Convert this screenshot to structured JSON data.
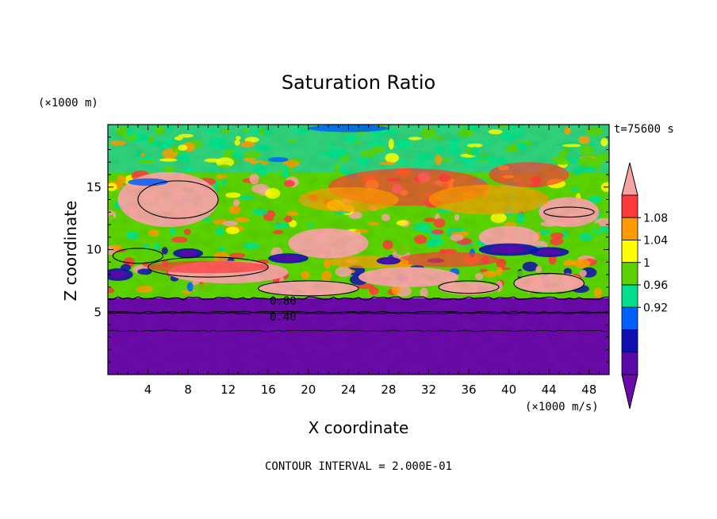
{
  "chart_data": {
    "type": "heatmap",
    "title": "Saturation Ratio",
    "xlabel": "X coordinate",
    "ylabel": "Z coordinate",
    "x_unit": "(×1000 m/s)",
    "y_unit": "(×1000 m)",
    "time_label": "t=75600 s",
    "footer": "CONTOUR INTERVAL = 2.000E-01",
    "xlim": [
      0,
      50
    ],
    "ylim": [
      0,
      20
    ],
    "x_ticks": [
      "4",
      "8",
      "12",
      "16",
      "20",
      "24",
      "28",
      "32",
      "36",
      "40",
      "44",
      "48"
    ],
    "y_ticks": [
      "5",
      "10",
      "15"
    ],
    "contour_labels": [
      "0.80",
      "0.40"
    ],
    "colorbar": {
      "labels": [
        "1.08",
        "1.04",
        "1",
        "0.96",
        "0.92"
      ],
      "colors": [
        "#ff3a3a",
        "#ff9a00",
        "#ffff00",
        "#5ad200",
        "#00e08a",
        "#0060ff",
        "#1010b0",
        "#5a0aa8"
      ],
      "over_color": "#f5a3a3",
      "under_color": "#6a0aa8"
    }
  }
}
